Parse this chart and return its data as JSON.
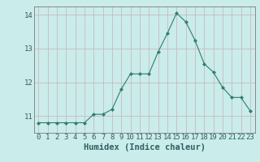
{
  "x": [
    0,
    1,
    2,
    3,
    4,
    5,
    6,
    7,
    8,
    9,
    10,
    11,
    12,
    13,
    14,
    15,
    16,
    17,
    18,
    19,
    20,
    21,
    22,
    23
  ],
  "y": [
    10.8,
    10.8,
    10.8,
    10.8,
    10.8,
    10.8,
    11.05,
    11.05,
    11.2,
    11.8,
    12.25,
    12.25,
    12.25,
    12.9,
    13.45,
    14.05,
    13.8,
    13.25,
    12.55,
    12.3,
    11.85,
    11.55,
    11.55,
    11.15
  ],
  "line_color": "#2e7d6e",
  "marker": "D",
  "marker_size": 2.2,
  "bg_color": "#caecea",
  "grid_color": "#c8b0b8",
  "xlabel": "Humidex (Indice chaleur)",
  "xlim": [
    -0.5,
    23.5
  ],
  "ylim": [
    10.5,
    14.25
  ],
  "yticks": [
    11,
    12,
    13,
    14
  ],
  "xticks": [
    0,
    1,
    2,
    3,
    4,
    5,
    6,
    7,
    8,
    9,
    10,
    11,
    12,
    13,
    14,
    15,
    16,
    17,
    18,
    19,
    20,
    21,
    22,
    23
  ],
  "xlabel_fontsize": 7.5,
  "tick_fontsize": 6.5
}
